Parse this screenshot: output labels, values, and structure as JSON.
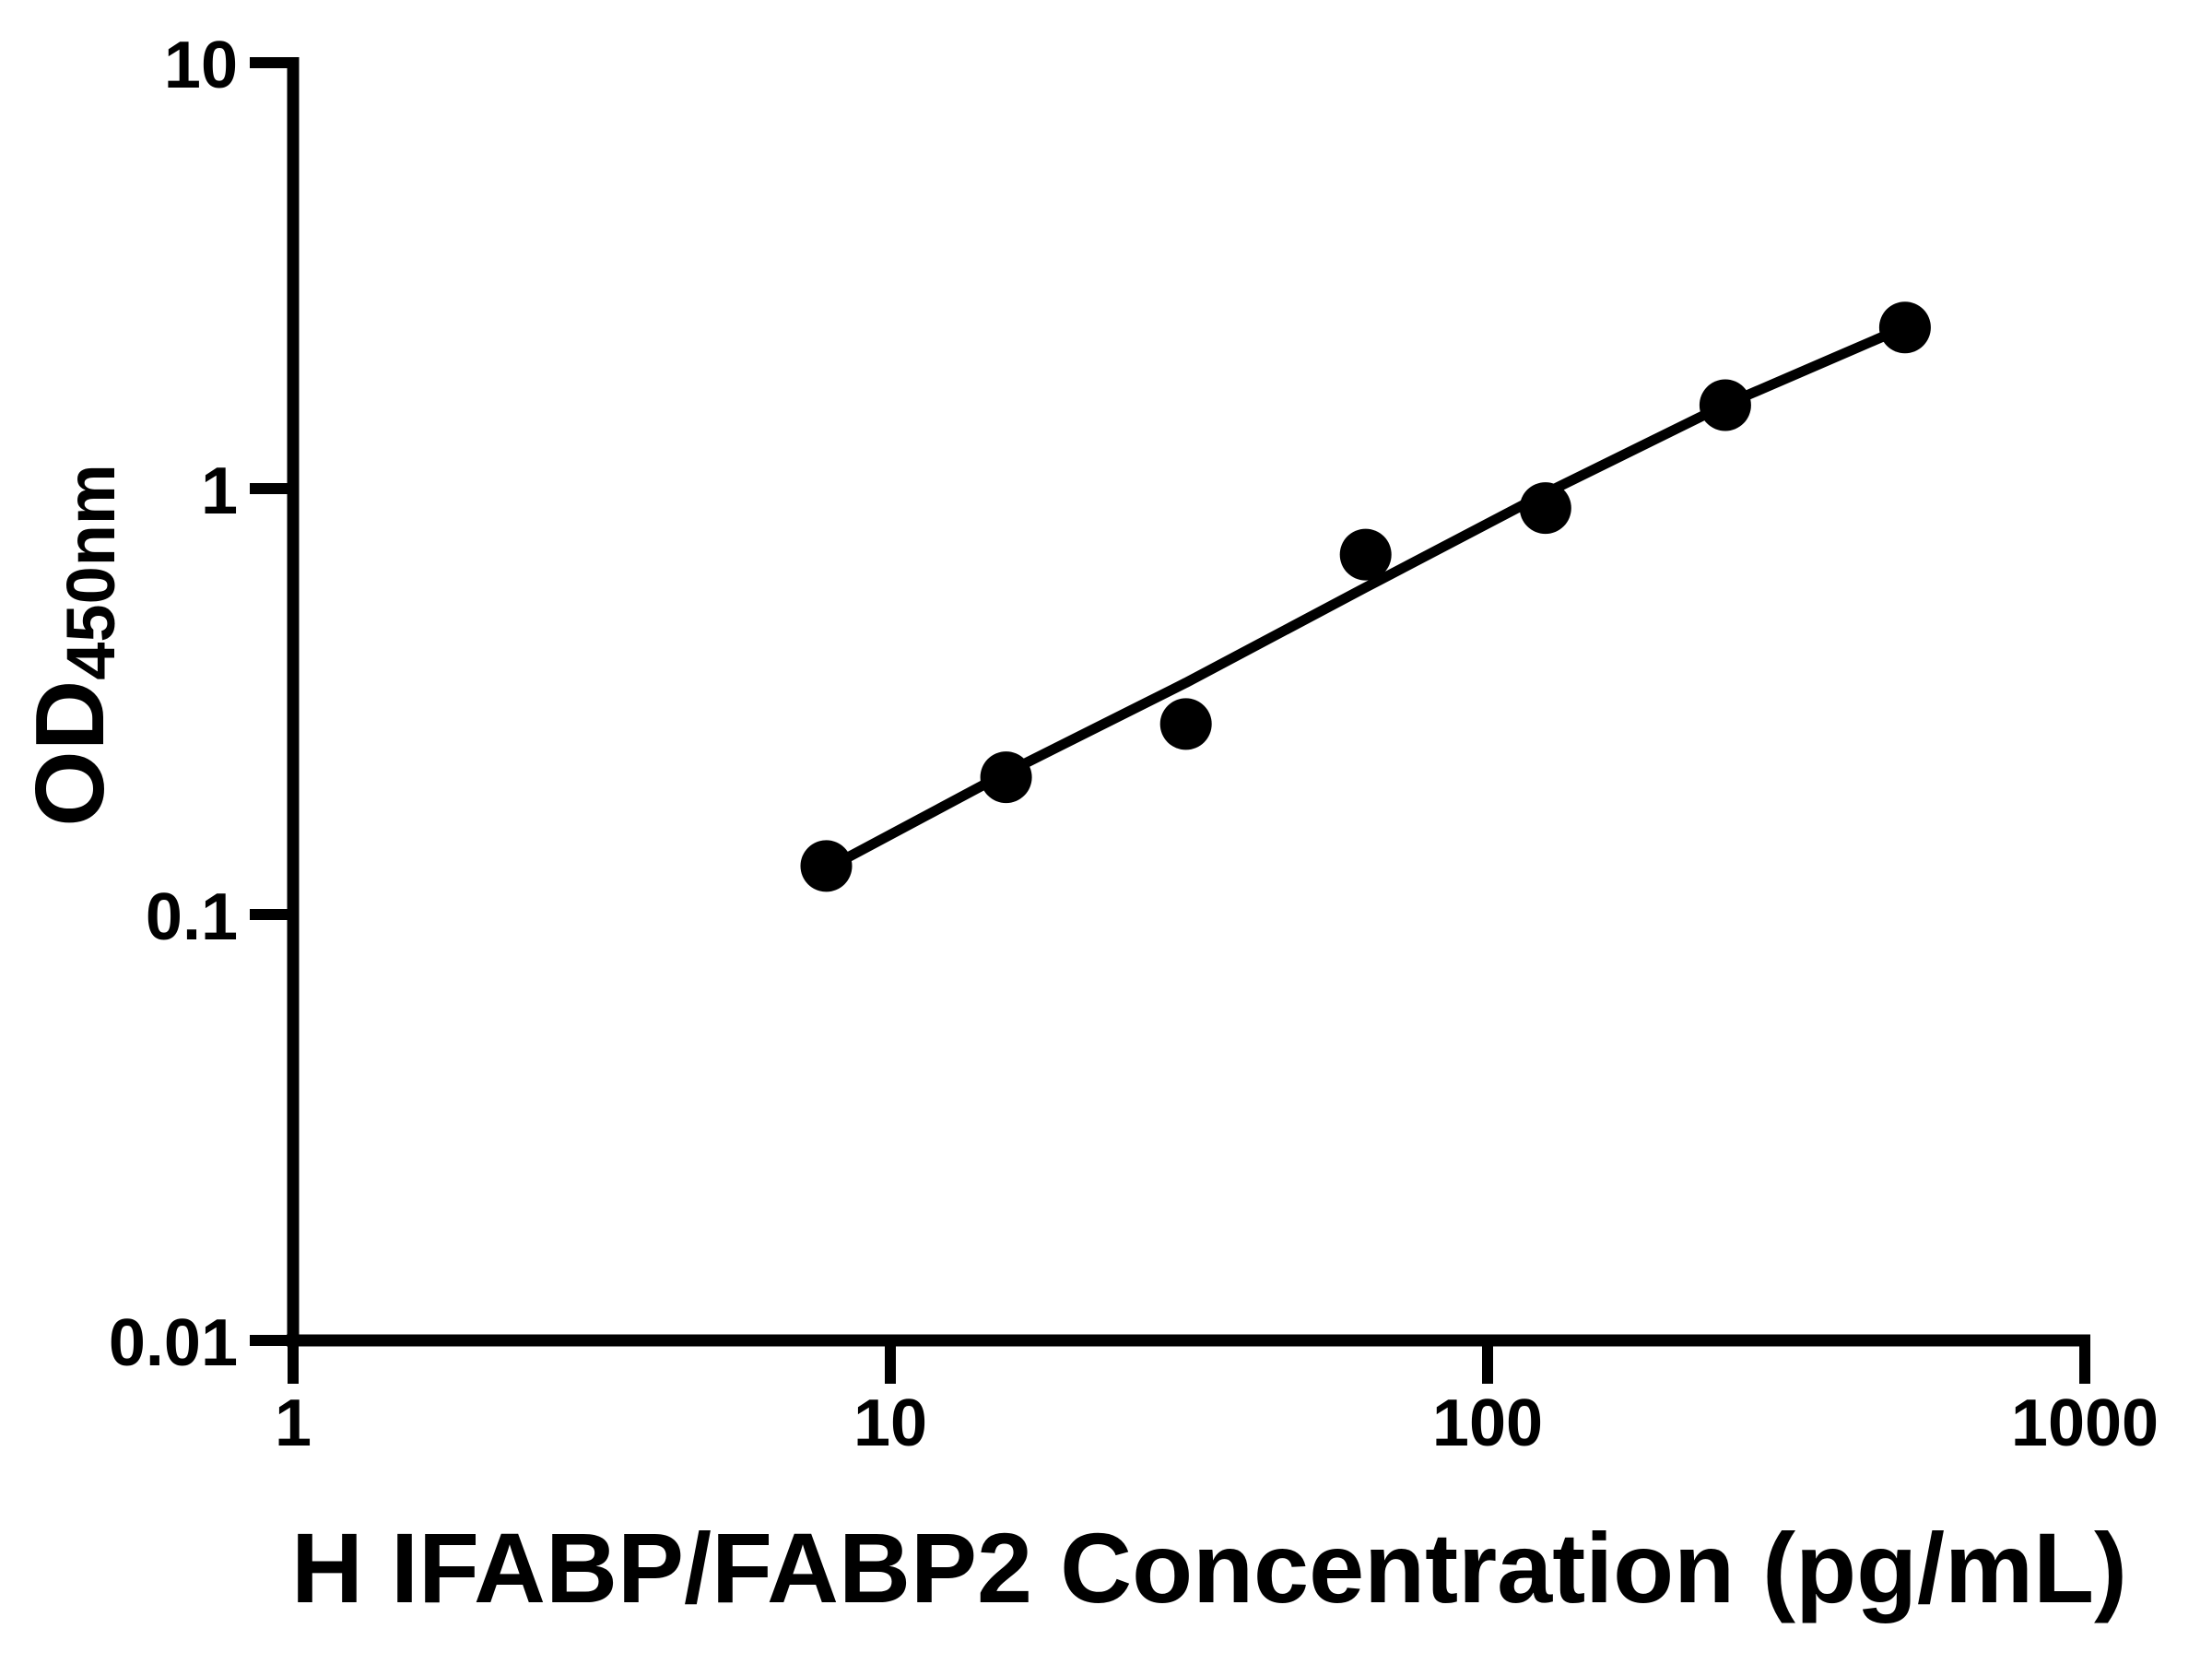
{
  "chart_data": {
    "type": "scatter",
    "title": "",
    "xlabel": "H IFABP/FABP2 Concentration (pg/mL)",
    "ylabel_main": "OD",
    "ylabel_sub": "450nm",
    "x_scale": "log",
    "y_scale": "log",
    "xlim": [
      1,
      1000
    ],
    "ylim": [
      0.01,
      10
    ],
    "x_ticks": [
      "1",
      "10",
      "100",
      "1000"
    ],
    "y_ticks": [
      "10",
      "1",
      "0.1",
      "0.01"
    ],
    "grid": false,
    "legend_position": "none",
    "colors": {
      "marker": "#000000",
      "line": "#000000",
      "axis": "#000000",
      "background": "#ffffff"
    },
    "series": [
      {
        "name": "standard-points",
        "type": "scatter",
        "marker": "circle",
        "x": [
          7.8125,
          15.625,
          31.25,
          62.5,
          125,
          250,
          500
        ],
        "y": [
          0.13,
          0.21,
          0.28,
          0.7,
          0.9,
          1.57,
          2.39
        ]
      },
      {
        "name": "fit-line",
        "type": "line",
        "x": [
          7.8125,
          15.625,
          31.25,
          62.5,
          125,
          250,
          500
        ],
        "y": [
          0.128,
          0.215,
          0.35,
          0.586,
          0.975,
          1.574,
          2.395
        ]
      }
    ]
  }
}
